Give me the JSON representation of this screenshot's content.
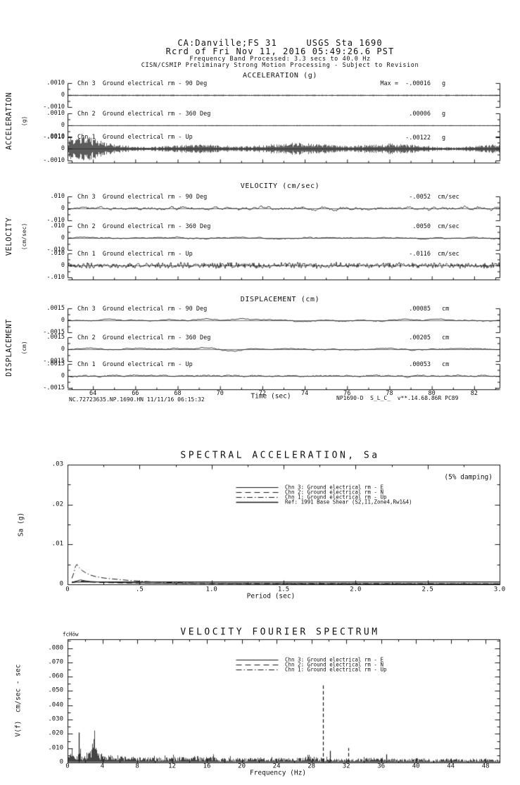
{
  "header": {
    "station_line": "CA:Danville;FS 31     USGS Sta 1690",
    "record_line": "Rcrd of Fri Nov 11, 2016 05:49:26.6 PST",
    "band_line": "Frequency Band Processed: 3.3 secs to 40.0 Hz",
    "notice_line": "CISN/CSMIP Preliminary Strong Motion Processing - Subject to Revision"
  },
  "footer": {
    "left": "NC.72723635.NP.1690.HN 11/11/16 06:15:32",
    "right": "NP1690-D  S_L_C_  v**.14.68.86R PC89"
  },
  "colors": {
    "ink": "#141414",
    "paper": "#ffffff"
  },
  "chart_data": [
    {
      "type": "line",
      "panel": "acceleration",
      "title": "ACCELERATION (g)",
      "ylabel_rot": "ACCELERATION",
      "ylabel_units": "(g)",
      "yticks": [
        ".0010",
        "0",
        "-.0010"
      ],
      "xlim": [
        62.8,
        83.2
      ],
      "strips": [
        {
          "channel": "Chn 3  Ground electrical rm - 90 Deg",
          "annot": "Max =  -.00016",
          "units": "g",
          "peak_value": -0.00016,
          "viz": {
            "mode": "band",
            "amp": 1.0,
            "seed": 11
          }
        },
        {
          "channel": "Chn 2  Ground electrical rm - 360 Deg",
          "annot": ".00006",
          "units": "g",
          "peak_value": 6e-05,
          "viz": {
            "mode": "band",
            "amp": 0.7,
            "seed": 22
          }
        },
        {
          "channel": "Chn 1  Ground electrical rm - Up",
          "annot": "-.00122",
          "units": "g",
          "peak_value": -0.00122,
          "viz": {
            "mode": "band",
            "amp": 5.5,
            "seed": 33,
            "burst": true,
            "mod": true
          }
        }
      ]
    },
    {
      "type": "line",
      "panel": "velocity",
      "title": "VELOCITY (cm/sec)",
      "ylabel_rot": "VELOCITY",
      "ylabel_units": "(cm/sec)",
      "yticks": [
        ".010",
        "0",
        "-.010"
      ],
      "xlim": [
        62.8,
        83.2
      ],
      "strips": [
        {
          "channel": "Chn 3  Ground electrical rm - 90 Deg",
          "annot": "-.0052",
          "units": "cm/sec",
          "peak_value": -0.0052,
          "viz": {
            "mode": "smooth",
            "amp": 3.2,
            "window": 7,
            "jitter": 0.9,
            "seed": 41
          }
        },
        {
          "channel": "Chn 2  Ground electrical rm - 360 Deg",
          "annot": ".0050",
          "units": "cm/sec",
          "peak_value": 0.005,
          "viz": {
            "mode": "smooth",
            "amp": 1.8,
            "window": 14,
            "jitter": 0.4,
            "seed": 42
          }
        },
        {
          "channel": "Chn 1  Ground electrical rm - Up",
          "annot": "-.0116",
          "units": "cm/sec",
          "peak_value": -0.0116,
          "viz": {
            "mode": "rough",
            "amp": 4.8,
            "seed": 43
          }
        }
      ]
    },
    {
      "type": "line",
      "panel": "displacement",
      "title": "DISPLACEMENT (cm)",
      "ylabel_rot": "DISPLACEMENT",
      "ylabel_units": "(cm)",
      "yticks": [
        ".0015",
        "0",
        "-.0015"
      ],
      "xlabel": "Time (sec)",
      "xticks": [
        "64",
        "66",
        "68",
        "70",
        "72",
        "74",
        "76",
        "78",
        "80",
        "82"
      ],
      "xlim": [
        62.8,
        83.2
      ],
      "strips": [
        {
          "channel": "Chn 3  Ground electrical rm - 90 Deg",
          "annot": ".00085",
          "units": "cm",
          "peak_value": 0.00085,
          "viz": {
            "mode": "smooth",
            "amp": 3.0,
            "window": 26,
            "jitter": 0.3,
            "seed": 51
          }
        },
        {
          "channel": "Chn 2  Ground electrical rm - 360 Deg",
          "annot": ".00205",
          "units": "cm",
          "peak_value": 0.00205,
          "viz": {
            "mode": "smooth",
            "amp": 2.8,
            "window": 30,
            "jitter": 0.3,
            "seed": 52
          }
        },
        {
          "channel": "Chn 1  Ground electrical rm - Up",
          "annot": ".00053",
          "units": "cm",
          "peak_value": 0.00053,
          "viz": {
            "mode": "smooth",
            "amp": 1.8,
            "window": 10,
            "jitter": 0.6,
            "seed": 53
          }
        }
      ]
    },
    {
      "type": "line",
      "panel": "spectral_acceleration",
      "title": "SPECTRAL ACCELERATION, Sa",
      "note": "(5% damping)",
      "ylabel": "Sa (g)",
      "xlabel": "Period (sec)",
      "xticks": [
        "0",
        ".5",
        "1.0",
        "1.5",
        "2.0",
        "2.5",
        "3.0"
      ],
      "yticks": [
        ".03",
        ".02",
        ".01",
        "0"
      ],
      "xlim": [
        0,
        3.0
      ],
      "ylim": [
        0,
        0.03
      ],
      "legend": [
        {
          "label": "Chn 3: Ground electrical rm - E",
          "style": "solid"
        },
        {
          "label": "Chn 2: Ground electrical rm - N",
          "style": "longdash"
        },
        {
          "label": "Chn 1: Ground electrical rm - Up",
          "style": "dashdot"
        },
        {
          "label": "Ref: 1991 Base Shear (S2,I1,Zone4,Rw1&4)",
          "style": "solid"
        }
      ],
      "series": [
        {
          "name": "Chn 3: Ground electrical rm - E",
          "style": "solid",
          "points": [
            [
              0.03,
              0.0005
            ],
            [
              0.06,
              0.0008
            ],
            [
              0.09,
              0.0011
            ],
            [
              0.12,
              0.0009
            ],
            [
              0.16,
              0.0007
            ],
            [
              0.22,
              0.0006
            ],
            [
              0.3,
              0.0005
            ],
            [
              0.4,
              0.0004
            ],
            [
              0.55,
              0.0003
            ],
            [
              0.8,
              0.00025
            ],
            [
              1.2,
              0.0002
            ],
            [
              2.0,
              0.00015
            ],
            [
              3.0,
              0.0001
            ]
          ]
        },
        {
          "name": "Chn 2: Ground electrical rm - N",
          "style": "longdash",
          "points": [
            [
              0.03,
              0.0004
            ],
            [
              0.06,
              0.0006
            ],
            [
              0.1,
              0.0008
            ],
            [
              0.15,
              0.0006
            ],
            [
              0.2,
              0.0005
            ],
            [
              0.3,
              0.0004
            ],
            [
              0.45,
              0.0003
            ],
            [
              0.7,
              0.00025
            ],
            [
              1.0,
              0.0002
            ],
            [
              1.5,
              0.00015
            ],
            [
              2.2,
              0.0001
            ],
            [
              3.0,
              0.0001
            ]
          ]
        },
        {
          "name": "Chn 1: Ground electrical rm - Up",
          "style": "dashdot",
          "points": [
            [
              0.03,
              0.0015
            ],
            [
              0.045,
              0.003
            ],
            [
              0.055,
              0.0045
            ],
            [
              0.065,
              0.005
            ],
            [
              0.08,
              0.0042
            ],
            [
              0.1,
              0.0035
            ],
            [
              0.13,
              0.0028
            ],
            [
              0.16,
              0.0023
            ],
            [
              0.2,
              0.0019
            ],
            [
              0.25,
              0.0016
            ],
            [
              0.3,
              0.0014
            ],
            [
              0.36,
              0.0012
            ],
            [
              0.42,
              0.001
            ],
            [
              0.5,
              0.0008
            ],
            [
              0.6,
              0.0006
            ],
            [
              0.75,
              0.0004
            ],
            [
              0.9,
              0.0003
            ],
            [
              1.2,
              0.00025
            ],
            [
              2.0,
              0.0002
            ],
            [
              3.0,
              0.00015
            ]
          ]
        },
        {
          "name": "Ref: 1991 Base Shear (S2,I1,Zone4,Rw1&4)",
          "style": "solid",
          "points": [
            [
              0.03,
              0.0006
            ],
            [
              3.0,
              0.0006
            ]
          ]
        }
      ]
    },
    {
      "type": "line",
      "panel": "velocity_fourier_spectrum",
      "title": "VELOCITY FOURIER SPECTRUM",
      "corner_label": "fcHöw",
      "ylabel": "V(f)  cm/sec - sec",
      "xlabel": "Frequency (Hz)",
      "xticks": [
        "0",
        "4",
        "8",
        "12",
        "16",
        "20",
        "24",
        "28",
        "32",
        "36",
        "40",
        "44",
        "48"
      ],
      "yticks": [
        ".080",
        ".070",
        ".060",
        ".050",
        ".040",
        ".030",
        ".020",
        ".010",
        "0"
      ],
      "xlim": [
        0,
        49.6
      ],
      "ylim": [
        0,
        0.0862
      ],
      "legend": [
        {
          "label": "Chn 3: Ground electrical rm - E",
          "style": "solid"
        },
        {
          "label": "Chn 2: Ground electrical rm - N",
          "style": "longdash"
        },
        {
          "label": "Chn 1: Ground electrical rm - Up",
          "style": "dashdot"
        }
      ],
      "noise_envelope": [
        [
          0,
          0.002
        ],
        [
          0.3,
          0.009
        ],
        [
          0.55,
          0.013
        ],
        [
          0.8,
          0.007
        ],
        [
          1.0,
          0.006
        ],
        [
          1.3,
          0.01
        ],
        [
          1.6,
          0.005
        ],
        [
          2.0,
          0.006
        ],
        [
          2.4,
          0.009
        ],
        [
          2.8,
          0.013
        ],
        [
          3.05,
          0.018
        ],
        [
          3.3,
          0.011
        ],
        [
          3.7,
          0.006
        ],
        [
          4.5,
          0.0055
        ],
        [
          6,
          0.005
        ],
        [
          8,
          0.004
        ],
        [
          10,
          0.0035
        ],
        [
          12,
          0.004
        ],
        [
          14,
          0.0045
        ],
        [
          16,
          0.0045
        ],
        [
          18,
          0.0035
        ],
        [
          20,
          0.003
        ],
        [
          22,
          0.0035
        ],
        [
          24,
          0.0035
        ],
        [
          26,
          0.003
        ],
        [
          28,
          0.0045
        ],
        [
          29,
          0.0035
        ],
        [
          30,
          0.003
        ],
        [
          31,
          0.0025
        ],
        [
          33,
          0.003
        ],
        [
          35,
          0.0035
        ],
        [
          36.5,
          0.003
        ],
        [
          38,
          0.0025
        ],
        [
          40,
          0.003
        ],
        [
          42,
          0.0025
        ],
        [
          44,
          0.0028
        ],
        [
          46,
          0.0025
        ],
        [
          48,
          0.003
        ],
        [
          49.6,
          0.002
        ]
      ],
      "spikes": [
        {
          "f": 1.3,
          "v": 0.021,
          "style": "solid"
        },
        {
          "f": 29.35,
          "v": 0.054,
          "style": "longdash"
        },
        {
          "f": 30.1,
          "v": 0.0085,
          "style": "solid"
        },
        {
          "f": 32.2,
          "v": 0.0105,
          "style": "longdash"
        },
        {
          "f": 36.6,
          "v": 0.006,
          "style": "solid"
        }
      ]
    }
  ]
}
